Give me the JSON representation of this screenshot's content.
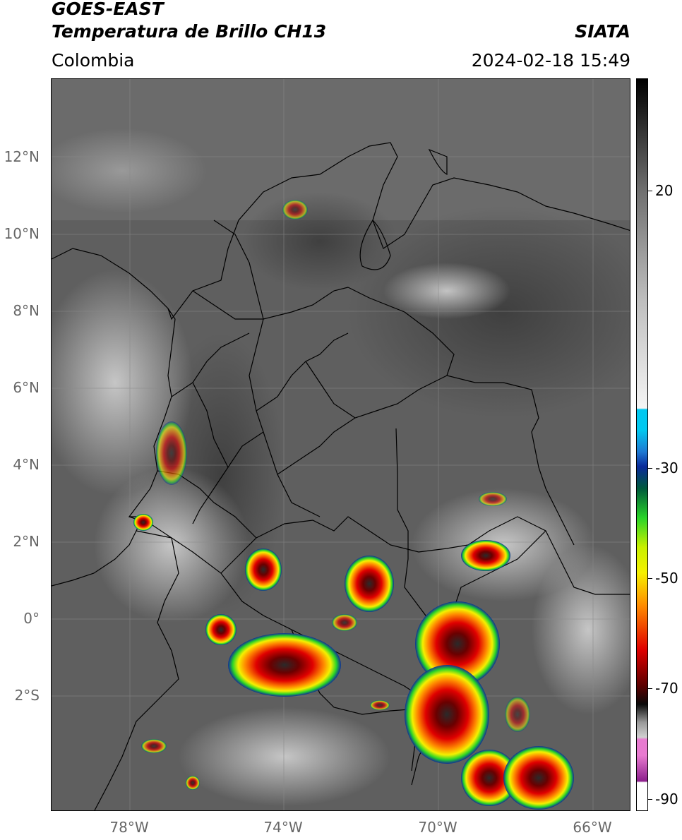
{
  "header": {
    "satellite": "GOES-EAST",
    "product": "Temperatura de Brillo CH13",
    "region": "Colombia",
    "agency": "SIATA",
    "datetime": "2024-02-18 15:49"
  },
  "map": {
    "lat_labels": [
      "12°N",
      "10°N",
      "8°N",
      "6°N",
      "4°N",
      "2°N",
      "0°",
      "2°S"
    ],
    "lon_labels": [
      "78°W",
      "74°W",
      "70°W",
      "66°W"
    ],
    "background_color": "#5f5f5f",
    "border_color": "#000000",
    "gridline_color": "#8a8a8a"
  },
  "colorbar": {
    "labels": [
      "20",
      "-30",
      "-50",
      "-70",
      "-90"
    ],
    "colors": {
      "warm_gray": "#6e6e6e",
      "cyan": "#00c8f0",
      "blue": "#0a2a9a",
      "green": "#28d428",
      "yellow": "#f5f000",
      "orange": "#ff8c00",
      "red": "#e00000",
      "dark_red": "#5a0000",
      "black": "#0a0a0a",
      "pink": "#e87ad0",
      "purple": "#8c1e8c",
      "white": "#ffffff"
    }
  }
}
